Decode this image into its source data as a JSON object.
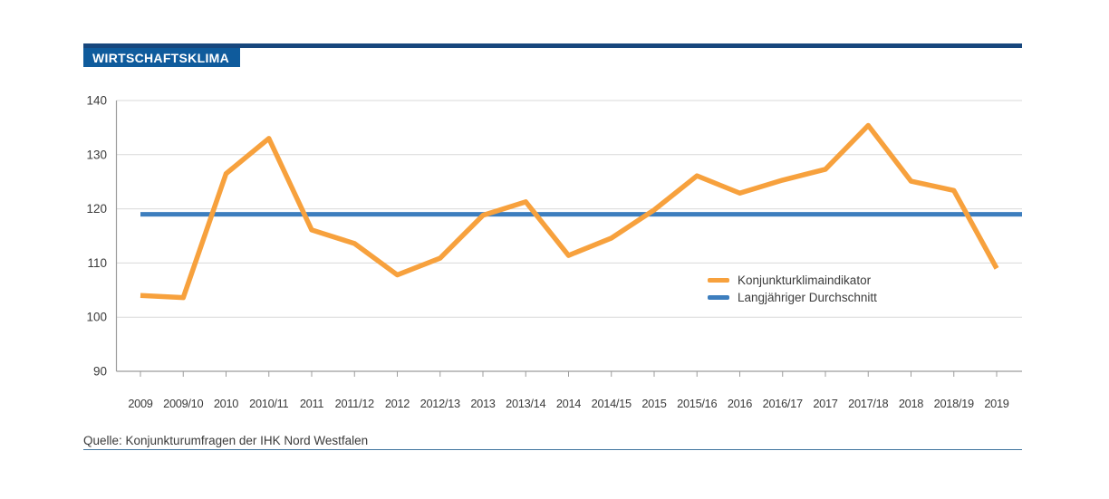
{
  "header": {
    "title": "WIRTSCHAFTSKLIMA"
  },
  "source": {
    "text": "Quelle: Konjunkturumfragen der IHK Nord Westfalen"
  },
  "colors": {
    "title_bar": "#17477D",
    "title_box": "#0F5B9C",
    "indicator_orange": "#F7A13D",
    "average_blue": "#3D7EBE",
    "gridline": "#D9D9D9",
    "axis": "#9C9C9C",
    "text": "#3B3B3B",
    "source_rule": "#41759F"
  },
  "chart_data": {
    "type": "line",
    "title": "WIRTSCHAFTSKLIMA",
    "categories": [
      "2009",
      "2009/10",
      "2010",
      "2010/11",
      "2011",
      "2011/12",
      "2012",
      "2012/13",
      "2013",
      "2013/14",
      "2014",
      "2014/15",
      "2015",
      "2015/16",
      "2016",
      "2016/17",
      "2017",
      "2017/18",
      "2018",
      "2018/19",
      "2019"
    ],
    "series": [
      {
        "name": "Konjunkturklimaindikator",
        "color": "#F7A13D",
        "values": [
          104.0,
          103.6,
          126.5,
          133.0,
          116.1,
          113.6,
          107.8,
          110.9,
          118.8,
          121.3,
          111.4,
          114.6,
          119.8,
          126.1,
          122.9,
          125.3,
          127.3,
          135.4,
          125.1,
          123.4,
          109.0
        ]
      },
      {
        "name": "Langjähriger Durchschnitt",
        "color": "#3D7EBE",
        "constant_value": 119
      }
    ],
    "xlabel": "",
    "ylabel": "",
    "ylim": [
      90,
      140
    ],
    "yticks": [
      90,
      100,
      110,
      120,
      130,
      140
    ],
    "grid": true,
    "legend_position": "inside-right"
  }
}
